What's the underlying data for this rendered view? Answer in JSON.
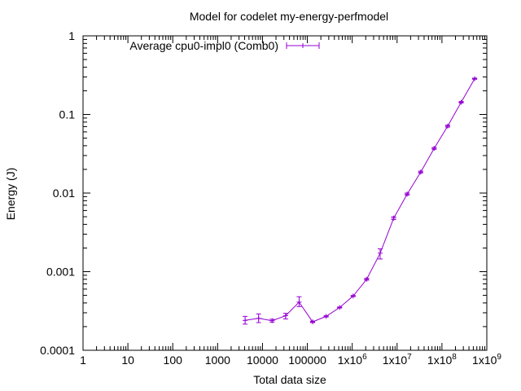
{
  "chart_data": {
    "type": "line",
    "title": "Model for codelet my-energy-perfmodel",
    "xlabel": "Total data size",
    "ylabel": "Energy (J)",
    "xscale": "log",
    "yscale": "log",
    "xlim": [
      1,
      1000000000
    ],
    "ylim": [
      0.0001,
      1
    ],
    "grid": false,
    "legend_position": "top-left",
    "x_tick_labels": [
      {
        "value": 1,
        "label": "1"
      },
      {
        "value": 10,
        "label": "10"
      },
      {
        "value": 100,
        "label": "100"
      },
      {
        "value": 1000,
        "label": "1000"
      },
      {
        "value": 10000,
        "label": "10000"
      },
      {
        "value": 100000,
        "label": "100000"
      },
      {
        "value": 1000000,
        "label": "1x10",
        "exp": "6"
      },
      {
        "value": 10000000,
        "label": "1x10",
        "exp": "7"
      },
      {
        "value": 100000000,
        "label": "1x10",
        "exp": "8"
      },
      {
        "value": 1000000000,
        "label": "1x10",
        "exp": "9"
      }
    ],
    "y_tick_labels": [
      {
        "value": 0.0001,
        "label": "0.0001"
      },
      {
        "value": 0.001,
        "label": "0.001"
      },
      {
        "value": 0.01,
        "label": "0.01"
      },
      {
        "value": 0.1,
        "label": "0.1"
      },
      {
        "value": 1,
        "label": "1"
      }
    ],
    "series": [
      {
        "name": "Average cpu0-impl0 (Comb0)",
        "color": "#9400d3",
        "points": [
          {
            "x": 4096,
            "y": 0.00024,
            "ylow": 0.000215,
            "yhigh": 0.00027
          },
          {
            "x": 8192,
            "y": 0.000255,
            "ylow": 0.000225,
            "yhigh": 0.00029
          },
          {
            "x": 16384,
            "y": 0.000238,
            "ylow": 0.000228,
            "yhigh": 0.000248
          },
          {
            "x": 32768,
            "y": 0.000275,
            "ylow": 0.00025,
            "yhigh": 0.000295
          },
          {
            "x": 65536,
            "y": 0.00041,
            "ylow": 0.00036,
            "yhigh": 0.00048
          },
          {
            "x": 131072,
            "y": 0.00023,
            "ylow": 0.000225,
            "yhigh": 0.000235
          },
          {
            "x": 262144,
            "y": 0.00027,
            "ylow": 0.000265,
            "yhigh": 0.000275
          },
          {
            "x": 524288,
            "y": 0.00035,
            "ylow": 0.000345,
            "yhigh": 0.000355
          },
          {
            "x": 1048576,
            "y": 0.00049,
            "ylow": 0.000482,
            "yhigh": 0.000498
          },
          {
            "x": 2097152,
            "y": 0.0008,
            "ylow": 0.00078,
            "yhigh": 0.00082
          },
          {
            "x": 4194304,
            "y": 0.00172,
            "ylow": 0.00145,
            "yhigh": 0.00195
          },
          {
            "x": 8388608,
            "y": 0.0048,
            "ylow": 0.0046,
            "yhigh": 0.005
          },
          {
            "x": 16777216,
            "y": 0.0097,
            "ylow": 0.0094,
            "yhigh": 0.01
          },
          {
            "x": 33554432,
            "y": 0.0185,
            "ylow": 0.018,
            "yhigh": 0.019
          },
          {
            "x": 67108864,
            "y": 0.037,
            "ylow": 0.036,
            "yhigh": 0.038
          },
          {
            "x": 134217728,
            "y": 0.071,
            "ylow": 0.069,
            "yhigh": 0.073
          },
          {
            "x": 268435456,
            "y": 0.143,
            "ylow": 0.14,
            "yhigh": 0.146
          },
          {
            "x": 536870912,
            "y": 0.285,
            "ylow": 0.28,
            "yhigh": 0.29
          }
        ]
      }
    ]
  }
}
